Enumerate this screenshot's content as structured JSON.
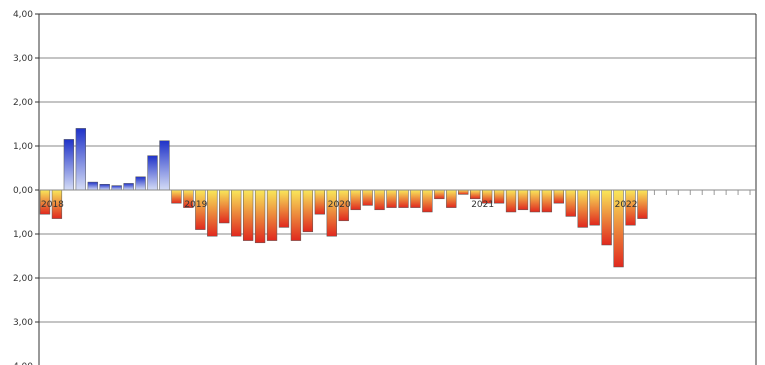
{
  "chart_data": {
    "type": "bar",
    "ylim": [
      -4,
      4
    ],
    "y_ticks": [
      {
        "value": 4,
        "label": "4,00"
      },
      {
        "value": 3,
        "label": "3,00"
      },
      {
        "value": 2,
        "label": "2,00"
      },
      {
        "value": 1,
        "label": "1,00"
      },
      {
        "value": 0,
        "label": "0,00"
      },
      {
        "value": -1,
        "label": "1,00"
      },
      {
        "value": -2,
        "label": "2,00"
      },
      {
        "value": -3,
        "label": "3,00"
      },
      {
        "value": -4,
        "label": "4,00"
      }
    ],
    "year_labels": [
      {
        "label": "2018",
        "index": 0
      },
      {
        "label": "2019",
        "index": 12
      },
      {
        "label": "2020",
        "index": 24
      },
      {
        "label": "2021",
        "index": 36
      },
      {
        "label": "2022",
        "index": 48
      }
    ],
    "slots": 60,
    "values": [
      -0.55,
      -0.65,
      1.15,
      1.4,
      0.18,
      0.13,
      0.1,
      0.15,
      0.3,
      0.78,
      1.12,
      -0.3,
      -0.4,
      -0.9,
      -1.05,
      -0.75,
      -1.05,
      -1.15,
      -1.2,
      -1.15,
      -0.85,
      -1.15,
      -0.95,
      -0.55,
      -1.05,
      -0.7,
      -0.45,
      -0.35,
      -0.45,
      -0.4,
      -0.4,
      -0.4,
      -0.5,
      -0.2,
      -0.4,
      -0.1,
      -0.2,
      -0.3,
      -0.3,
      -0.5,
      -0.45,
      -0.5,
      -0.5,
      -0.3,
      -0.6,
      -0.85,
      -0.8,
      -1.25,
      -1.75,
      -0.8,
      -0.65
    ],
    "grid": true,
    "colors": {
      "positive_top": "#1f32c8",
      "positive_bottom": "#d4dcf6",
      "negative_top": "#f9e85a",
      "negative_bottom": "#e0281e",
      "grid": "#8a8a8a",
      "axis": "#333333"
    }
  }
}
